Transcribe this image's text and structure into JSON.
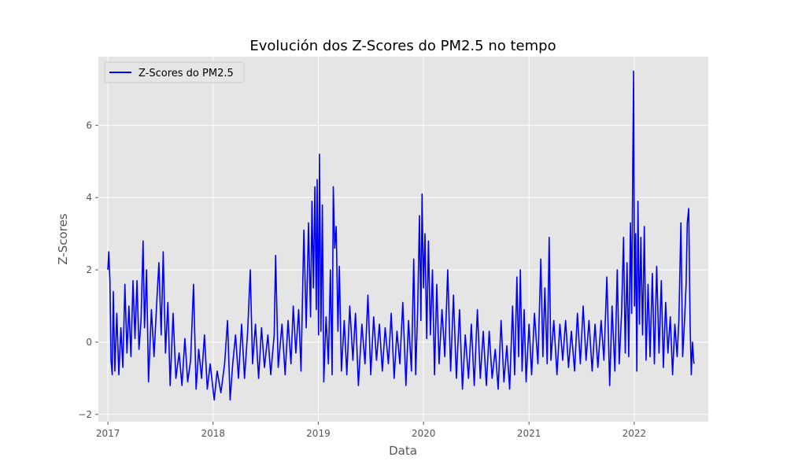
{
  "chart_data": {
    "type": "line",
    "title": "Evolución dos Z-Scores do PM2.5 no tempo",
    "xlabel": "Data",
    "ylabel": "Z-Scores",
    "x_range": [
      "2016-11-29",
      "2022-09-15"
    ],
    "ylim": [
      -2.2,
      7.9
    ],
    "x_ticks": [
      "2017",
      "2018",
      "2019",
      "2020",
      "2021",
      "2022"
    ],
    "y_ticks": [
      "−2",
      "0",
      "2",
      "4",
      "6"
    ],
    "y_tick_values": [
      -2,
      0,
      2,
      4,
      6
    ],
    "grid": true,
    "legend_position": "upper-left",
    "series": [
      {
        "name": "Z-Scores do PM2.5",
        "color": "#0000ff",
        "points": [
          [
            "2017-01-01",
            2.0
          ],
          [
            "2017-01-04",
            2.5
          ],
          [
            "2017-01-08",
            1.7
          ],
          [
            "2017-01-12",
            -0.5
          ],
          [
            "2017-01-16",
            -0.9
          ],
          [
            "2017-01-20",
            1.4
          ],
          [
            "2017-01-25",
            -0.8
          ],
          [
            "2017-02-01",
            0.8
          ],
          [
            "2017-02-08",
            -0.9
          ],
          [
            "2017-02-15",
            0.4
          ],
          [
            "2017-02-22",
            -0.7
          ],
          [
            "2017-03-01",
            1.6
          ],
          [
            "2017-03-08",
            -0.3
          ],
          [
            "2017-03-15",
            1.0
          ],
          [
            "2017-03-22",
            -0.4
          ],
          [
            "2017-03-29",
            1.7
          ],
          [
            "2017-04-05",
            0.1
          ],
          [
            "2017-04-12",
            1.7
          ],
          [
            "2017-04-19",
            -0.2
          ],
          [
            "2017-04-26",
            0.6
          ],
          [
            "2017-05-03",
            2.8
          ],
          [
            "2017-05-08",
            0.4
          ],
          [
            "2017-05-15",
            2.0
          ],
          [
            "2017-05-22",
            -1.1
          ],
          [
            "2017-06-01",
            0.9
          ],
          [
            "2017-06-10",
            -0.4
          ],
          [
            "2017-06-20",
            1.2
          ],
          [
            "2017-06-27",
            2.2
          ],
          [
            "2017-07-05",
            0.2
          ],
          [
            "2017-07-12",
            2.5
          ],
          [
            "2017-07-20",
            -0.3
          ],
          [
            "2017-07-28",
            1.1
          ],
          [
            "2017-08-05",
            -1.2
          ],
          [
            "2017-08-15",
            0.8
          ],
          [
            "2017-08-25",
            -1.0
          ],
          [
            "2017-09-05",
            -0.3
          ],
          [
            "2017-09-15",
            -1.2
          ],
          [
            "2017-09-25",
            0.1
          ],
          [
            "2017-10-05",
            -1.1
          ],
          [
            "2017-10-15",
            -0.5
          ],
          [
            "2017-10-25",
            1.6
          ],
          [
            "2017-11-03",
            -1.3
          ],
          [
            "2017-11-12",
            -0.2
          ],
          [
            "2017-11-22",
            -1.0
          ],
          [
            "2017-12-02",
            0.2
          ],
          [
            "2017-12-12",
            -1.3
          ],
          [
            "2017-12-22",
            -0.6
          ],
          [
            "2018-01-05",
            -1.6
          ],
          [
            "2018-01-15",
            -0.8
          ],
          [
            "2018-01-28",
            -1.4
          ],
          [
            "2018-02-10",
            -0.6
          ],
          [
            "2018-02-20",
            0.6
          ],
          [
            "2018-03-01",
            -1.6
          ],
          [
            "2018-03-10",
            -0.6
          ],
          [
            "2018-03-20",
            0.2
          ],
          [
            "2018-03-30",
            -1.0
          ],
          [
            "2018-04-10",
            0.5
          ],
          [
            "2018-04-20",
            -1.0
          ],
          [
            "2018-05-01",
            0.3
          ],
          [
            "2018-05-10",
            2.0
          ],
          [
            "2018-05-18",
            -0.6
          ],
          [
            "2018-05-28",
            0.5
          ],
          [
            "2018-06-08",
            -1.0
          ],
          [
            "2018-06-18",
            0.4
          ],
          [
            "2018-06-28",
            -0.7
          ],
          [
            "2018-07-10",
            0.2
          ],
          [
            "2018-07-20",
            -0.9
          ],
          [
            "2018-08-01",
            0.2
          ],
          [
            "2018-08-06",
            2.4
          ],
          [
            "2018-08-15",
            -0.7
          ],
          [
            "2018-08-28",
            0.5
          ],
          [
            "2018-09-08",
            -0.9
          ],
          [
            "2018-09-18",
            0.6
          ],
          [
            "2018-09-28",
            -0.6
          ],
          [
            "2018-10-06",
            1.0
          ],
          [
            "2018-10-15",
            -0.3
          ],
          [
            "2018-10-25",
            0.9
          ],
          [
            "2018-11-02",
            -0.8
          ],
          [
            "2018-11-12",
            3.1
          ],
          [
            "2018-11-20",
            0.4
          ],
          [
            "2018-11-28",
            3.3
          ],
          [
            "2018-12-05",
            0.7
          ],
          [
            "2018-12-10",
            3.9
          ],
          [
            "2018-12-15",
            1.5
          ],
          [
            "2018-12-20",
            4.3
          ],
          [
            "2018-12-25",
            0.9
          ],
          [
            "2018-12-28",
            4.5
          ],
          [
            "2019-01-02",
            0.2
          ],
          [
            "2019-01-05",
            5.2
          ],
          [
            "2019-01-10",
            0.3
          ],
          [
            "2019-01-15",
            3.8
          ],
          [
            "2019-01-20",
            -1.1
          ],
          [
            "2019-01-28",
            0.7
          ],
          [
            "2019-02-05",
            -0.6
          ],
          [
            "2019-02-12",
            2.0
          ],
          [
            "2019-02-18",
            -0.9
          ],
          [
            "2019-02-22",
            4.3
          ],
          [
            "2019-02-27",
            2.6
          ],
          [
            "2019-03-04",
            3.2
          ],
          [
            "2019-03-10",
            0.3
          ],
          [
            "2019-03-15",
            2.1
          ],
          [
            "2019-03-22",
            -0.8
          ],
          [
            "2019-04-01",
            0.6
          ],
          [
            "2019-04-10",
            -0.9
          ],
          [
            "2019-04-20",
            1.0
          ],
          [
            "2019-05-01",
            -0.5
          ],
          [
            "2019-05-10",
            0.8
          ],
          [
            "2019-05-20",
            -1.2
          ],
          [
            "2019-06-01",
            0.5
          ],
          [
            "2019-06-12",
            -0.6
          ],
          [
            "2019-06-22",
            1.3
          ],
          [
            "2019-07-02",
            -0.9
          ],
          [
            "2019-07-12",
            0.7
          ],
          [
            "2019-07-22",
            -0.5
          ],
          [
            "2019-08-01",
            0.5
          ],
          [
            "2019-08-11",
            -0.8
          ],
          [
            "2019-08-21",
            0.4
          ],
          [
            "2019-09-01",
            -0.6
          ],
          [
            "2019-09-11",
            0.8
          ],
          [
            "2019-09-21",
            -1.0
          ],
          [
            "2019-10-01",
            0.3
          ],
          [
            "2019-10-11",
            -0.6
          ],
          [
            "2019-10-21",
            1.1
          ],
          [
            "2019-11-01",
            -1.2
          ],
          [
            "2019-11-10",
            0.6
          ],
          [
            "2019-11-20",
            -0.8
          ],
          [
            "2019-11-28",
            2.3
          ],
          [
            "2019-12-05",
            -0.9
          ],
          [
            "2019-12-12",
            1.0
          ],
          [
            "2019-12-18",
            3.5
          ],
          [
            "2019-12-23",
            0.6
          ],
          [
            "2019-12-27",
            4.1
          ],
          [
            "2020-01-01",
            1.5
          ],
          [
            "2020-01-06",
            3.0
          ],
          [
            "2020-01-12",
            0.1
          ],
          [
            "2020-01-18",
            2.8
          ],
          [
            "2020-01-25",
            0.2
          ],
          [
            "2020-02-01",
            2.0
          ],
          [
            "2020-02-08",
            -0.9
          ],
          [
            "2020-02-16",
            1.6
          ],
          [
            "2020-02-24",
            -0.6
          ],
          [
            "2020-03-05",
            0.9
          ],
          [
            "2020-03-15",
            -0.4
          ],
          [
            "2020-03-25",
            2.0
          ],
          [
            "2020-04-04",
            -0.8
          ],
          [
            "2020-04-14",
            1.3
          ],
          [
            "2020-04-24",
            -1.0
          ],
          [
            "2020-05-05",
            0.9
          ],
          [
            "2020-05-15",
            -1.3
          ],
          [
            "2020-05-25",
            0.2
          ],
          [
            "2020-06-05",
            -1.0
          ],
          [
            "2020-06-15",
            0.5
          ],
          [
            "2020-06-25",
            -1.2
          ],
          [
            "2020-07-06",
            0.9
          ],
          [
            "2020-07-16",
            -1.0
          ],
          [
            "2020-07-26",
            0.3
          ],
          [
            "2020-08-06",
            -1.2
          ],
          [
            "2020-08-16",
            0.3
          ],
          [
            "2020-08-26",
            -1.0
          ],
          [
            "2020-09-06",
            -0.2
          ],
          [
            "2020-09-16",
            -1.3
          ],
          [
            "2020-09-26",
            0.6
          ],
          [
            "2020-10-06",
            -1.1
          ],
          [
            "2020-10-16",
            -0.1
          ],
          [
            "2020-10-26",
            -1.3
          ],
          [
            "2020-11-05",
            1.0
          ],
          [
            "2020-11-12",
            -0.9
          ],
          [
            "2020-11-20",
            1.8
          ],
          [
            "2020-11-26",
            -0.4
          ],
          [
            "2020-12-02",
            2.0
          ],
          [
            "2020-12-08",
            -0.8
          ],
          [
            "2020-12-15",
            0.9
          ],
          [
            "2020-12-22",
            -1.1
          ],
          [
            "2021-01-01",
            0.5
          ],
          [
            "2021-01-10",
            -0.9
          ],
          [
            "2021-01-20",
            0.8
          ],
          [
            "2021-02-01",
            -0.6
          ],
          [
            "2021-02-11",
            2.3
          ],
          [
            "2021-02-18",
            -0.4
          ],
          [
            "2021-02-25",
            1.5
          ],
          [
            "2021-03-05",
            -0.6
          ],
          [
            "2021-03-12",
            2.9
          ],
          [
            "2021-03-18",
            -0.5
          ],
          [
            "2021-03-28",
            0.6
          ],
          [
            "2021-04-08",
            -0.9
          ],
          [
            "2021-04-18",
            0.5
          ],
          [
            "2021-04-28",
            -0.5
          ],
          [
            "2021-05-08",
            0.6
          ],
          [
            "2021-05-18",
            -0.7
          ],
          [
            "2021-05-28",
            0.3
          ],
          [
            "2021-06-08",
            -0.8
          ],
          [
            "2021-06-18",
            0.8
          ],
          [
            "2021-06-28",
            -0.6
          ],
          [
            "2021-07-08",
            1.0
          ],
          [
            "2021-07-18",
            -0.5
          ],
          [
            "2021-07-28",
            0.6
          ],
          [
            "2021-08-08",
            -0.8
          ],
          [
            "2021-08-18",
            0.5
          ],
          [
            "2021-08-28",
            -0.7
          ],
          [
            "2021-09-08",
            0.6
          ],
          [
            "2021-09-18",
            -0.5
          ],
          [
            "2021-09-28",
            1.8
          ],
          [
            "2021-10-08",
            -1.2
          ],
          [
            "2021-10-16",
            1.0
          ],
          [
            "2021-10-26",
            -0.8
          ],
          [
            "2021-11-03",
            2.0
          ],
          [
            "2021-11-10",
            -0.6
          ],
          [
            "2021-11-18",
            0.8
          ],
          [
            "2021-11-25",
            2.9
          ],
          [
            "2021-12-01",
            -0.3
          ],
          [
            "2021-12-07",
            2.2
          ],
          [
            "2021-12-13",
            -0.4
          ],
          [
            "2021-12-19",
            3.3
          ],
          [
            "2021-12-23",
            0.8
          ],
          [
            "2021-12-27",
            4.8
          ],
          [
            "2021-12-30",
            7.5
          ],
          [
            "2022-01-02",
            1.0
          ],
          [
            "2022-01-06",
            3.0
          ],
          [
            "2022-01-10",
            -0.8
          ],
          [
            "2022-01-14",
            3.9
          ],
          [
            "2022-01-19",
            0.5
          ],
          [
            "2022-01-24",
            2.9
          ],
          [
            "2022-01-30",
            0.2
          ],
          [
            "2022-02-05",
            3.2
          ],
          [
            "2022-02-11",
            -0.5
          ],
          [
            "2022-02-18",
            1.6
          ],
          [
            "2022-02-25",
            -0.4
          ],
          [
            "2022-03-05",
            1.9
          ],
          [
            "2022-03-12",
            -0.6
          ],
          [
            "2022-03-20",
            2.1
          ],
          [
            "2022-03-28",
            -0.3
          ],
          [
            "2022-04-05",
            1.7
          ],
          [
            "2022-04-12",
            -0.7
          ],
          [
            "2022-04-20",
            1.1
          ],
          [
            "2022-04-28",
            -0.3
          ],
          [
            "2022-05-06",
            0.7
          ],
          [
            "2022-05-14",
            -0.9
          ],
          [
            "2022-05-22",
            0.5
          ],
          [
            "2022-05-30",
            -0.4
          ],
          [
            "2022-06-05",
            0.6
          ],
          [
            "2022-06-12",
            3.3
          ],
          [
            "2022-06-18",
            -0.4
          ],
          [
            "2022-06-24",
            0.5
          ],
          [
            "2022-06-30",
            1.6
          ],
          [
            "2022-07-04",
            3.3
          ],
          [
            "2022-07-09",
            3.7
          ],
          [
            "2022-07-14",
            0.5
          ],
          [
            "2022-07-18",
            -0.9
          ],
          [
            "2022-07-22",
            0.0
          ],
          [
            "2022-07-27",
            -0.6
          ]
        ]
      }
    ]
  }
}
